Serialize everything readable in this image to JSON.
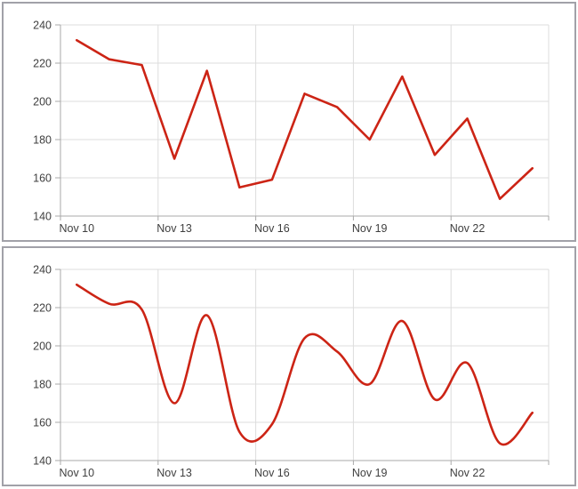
{
  "colors": {
    "line": "#cc2415",
    "grid": "#dddddd",
    "axis": "#a9a9a9",
    "tick": "#a9a9a9",
    "label_text": "#3f3f3f",
    "box_border": "#a1a1a8",
    "background": "#ffffff"
  },
  "chart_data": [
    {
      "type": "line",
      "line_style": "straight",
      "title": "",
      "xlabel": "",
      "ylabel": "",
      "values": [
        232,
        222,
        219,
        170,
        216,
        155,
        159,
        204,
        197,
        180,
        213,
        172,
        191,
        149,
        165
      ],
      "x_tick_labels": [
        "Nov 10",
        "Nov 13",
        "Nov 16",
        "Nov 19",
        "Nov 22"
      ],
      "x_tick_point_indices": [
        0,
        3,
        6,
        9,
        12
      ],
      "y_ticks": [
        240,
        220,
        200,
        180,
        160,
        140
      ],
      "ylim": [
        140,
        240
      ],
      "grid": true,
      "legend": false,
      "line_color": "#cc2415"
    },
    {
      "type": "line",
      "line_style": "smooth",
      "title": "",
      "xlabel": "",
      "ylabel": "",
      "values": [
        232,
        222,
        219,
        170,
        216,
        155,
        159,
        204,
        197,
        180,
        213,
        172,
        191,
        149,
        165
      ],
      "x_tick_labels": [
        "Nov 10",
        "Nov 13",
        "Nov 16",
        "Nov 19",
        "Nov 22"
      ],
      "x_tick_point_indices": [
        0,
        3,
        6,
        9,
        12
      ],
      "y_ticks": [
        240,
        220,
        200,
        180,
        160,
        140
      ],
      "ylim": [
        140,
        240
      ],
      "grid": true,
      "legend": false,
      "line_color": "#cc2415"
    }
  ]
}
